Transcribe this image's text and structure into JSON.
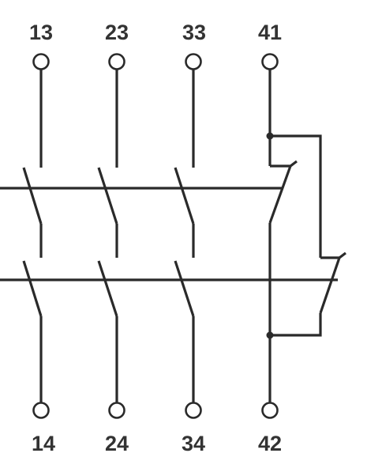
{
  "terminals": {
    "top": [
      "13",
      "23",
      "33",
      "41"
    ],
    "bottom": [
      "14",
      "24",
      "34",
      "42"
    ]
  },
  "colors": {
    "line": "#2a2a2a",
    "label": "#333333",
    "background": "#ffffff"
  }
}
